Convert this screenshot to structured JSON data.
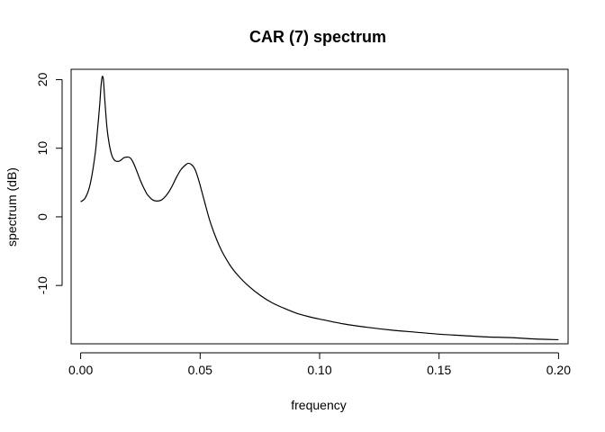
{
  "chart_data": {
    "type": "line",
    "title": "CAR (7) spectrum",
    "xlabel": "frequency",
    "ylabel": "spectrum (dB)",
    "xlim": [
      -0.004,
      0.204
    ],
    "ylim": [
      -18.5,
      21.5
    ],
    "x_ticks": [
      0.0,
      0.05,
      0.1,
      0.15,
      0.2
    ],
    "x_tick_labels": [
      "0.00",
      "0.05",
      "0.10",
      "0.15",
      "0.20"
    ],
    "y_ticks": [
      -10,
      0,
      10,
      20
    ],
    "y_tick_labels": [
      "-10",
      "0",
      "10",
      "20"
    ],
    "grid": false,
    "legend": "none",
    "line_color": "#000000",
    "series": [
      {
        "x": [
          0.0,
          0.002,
          0.004,
          0.006,
          0.007,
          0.008,
          0.0085,
          0.009,
          0.0095,
          0.01,
          0.011,
          0.012,
          0.013,
          0.014,
          0.015,
          0.016,
          0.017,
          0.018,
          0.019,
          0.02,
          0.021,
          0.022,
          0.023,
          0.024,
          0.025,
          0.026,
          0.027,
          0.028,
          0.03,
          0.032,
          0.034,
          0.036,
          0.038,
          0.04,
          0.042,
          0.044,
          0.045,
          0.046,
          0.047,
          0.048,
          0.049,
          0.05,
          0.052,
          0.054,
          0.056,
          0.058,
          0.06,
          0.063,
          0.066,
          0.07,
          0.075,
          0.08,
          0.085,
          0.09,
          0.095,
          0.1,
          0.11,
          0.12,
          0.13,
          0.14,
          0.15,
          0.16,
          0.17,
          0.18,
          0.19,
          0.2
        ],
        "y": [
          2.2,
          2.8,
          4.8,
          9.0,
          12.5,
          16.5,
          19.0,
          20.4,
          20.0,
          17.5,
          13.0,
          10.5,
          9.0,
          8.3,
          8.1,
          8.1,
          8.3,
          8.6,
          8.7,
          8.7,
          8.5,
          7.9,
          7.1,
          6.2,
          5.3,
          4.5,
          3.8,
          3.2,
          2.5,
          2.3,
          2.5,
          3.2,
          4.3,
          5.7,
          6.9,
          7.6,
          7.8,
          7.7,
          7.4,
          6.8,
          5.8,
          4.6,
          2.0,
          -0.5,
          -2.5,
          -4.2,
          -5.6,
          -7.3,
          -8.6,
          -10.0,
          -11.4,
          -12.5,
          -13.3,
          -14.0,
          -14.5,
          -14.9,
          -15.6,
          -16.1,
          -16.5,
          -16.8,
          -17.1,
          -17.3,
          -17.5,
          -17.6,
          -17.8,
          -17.9
        ]
      }
    ]
  }
}
